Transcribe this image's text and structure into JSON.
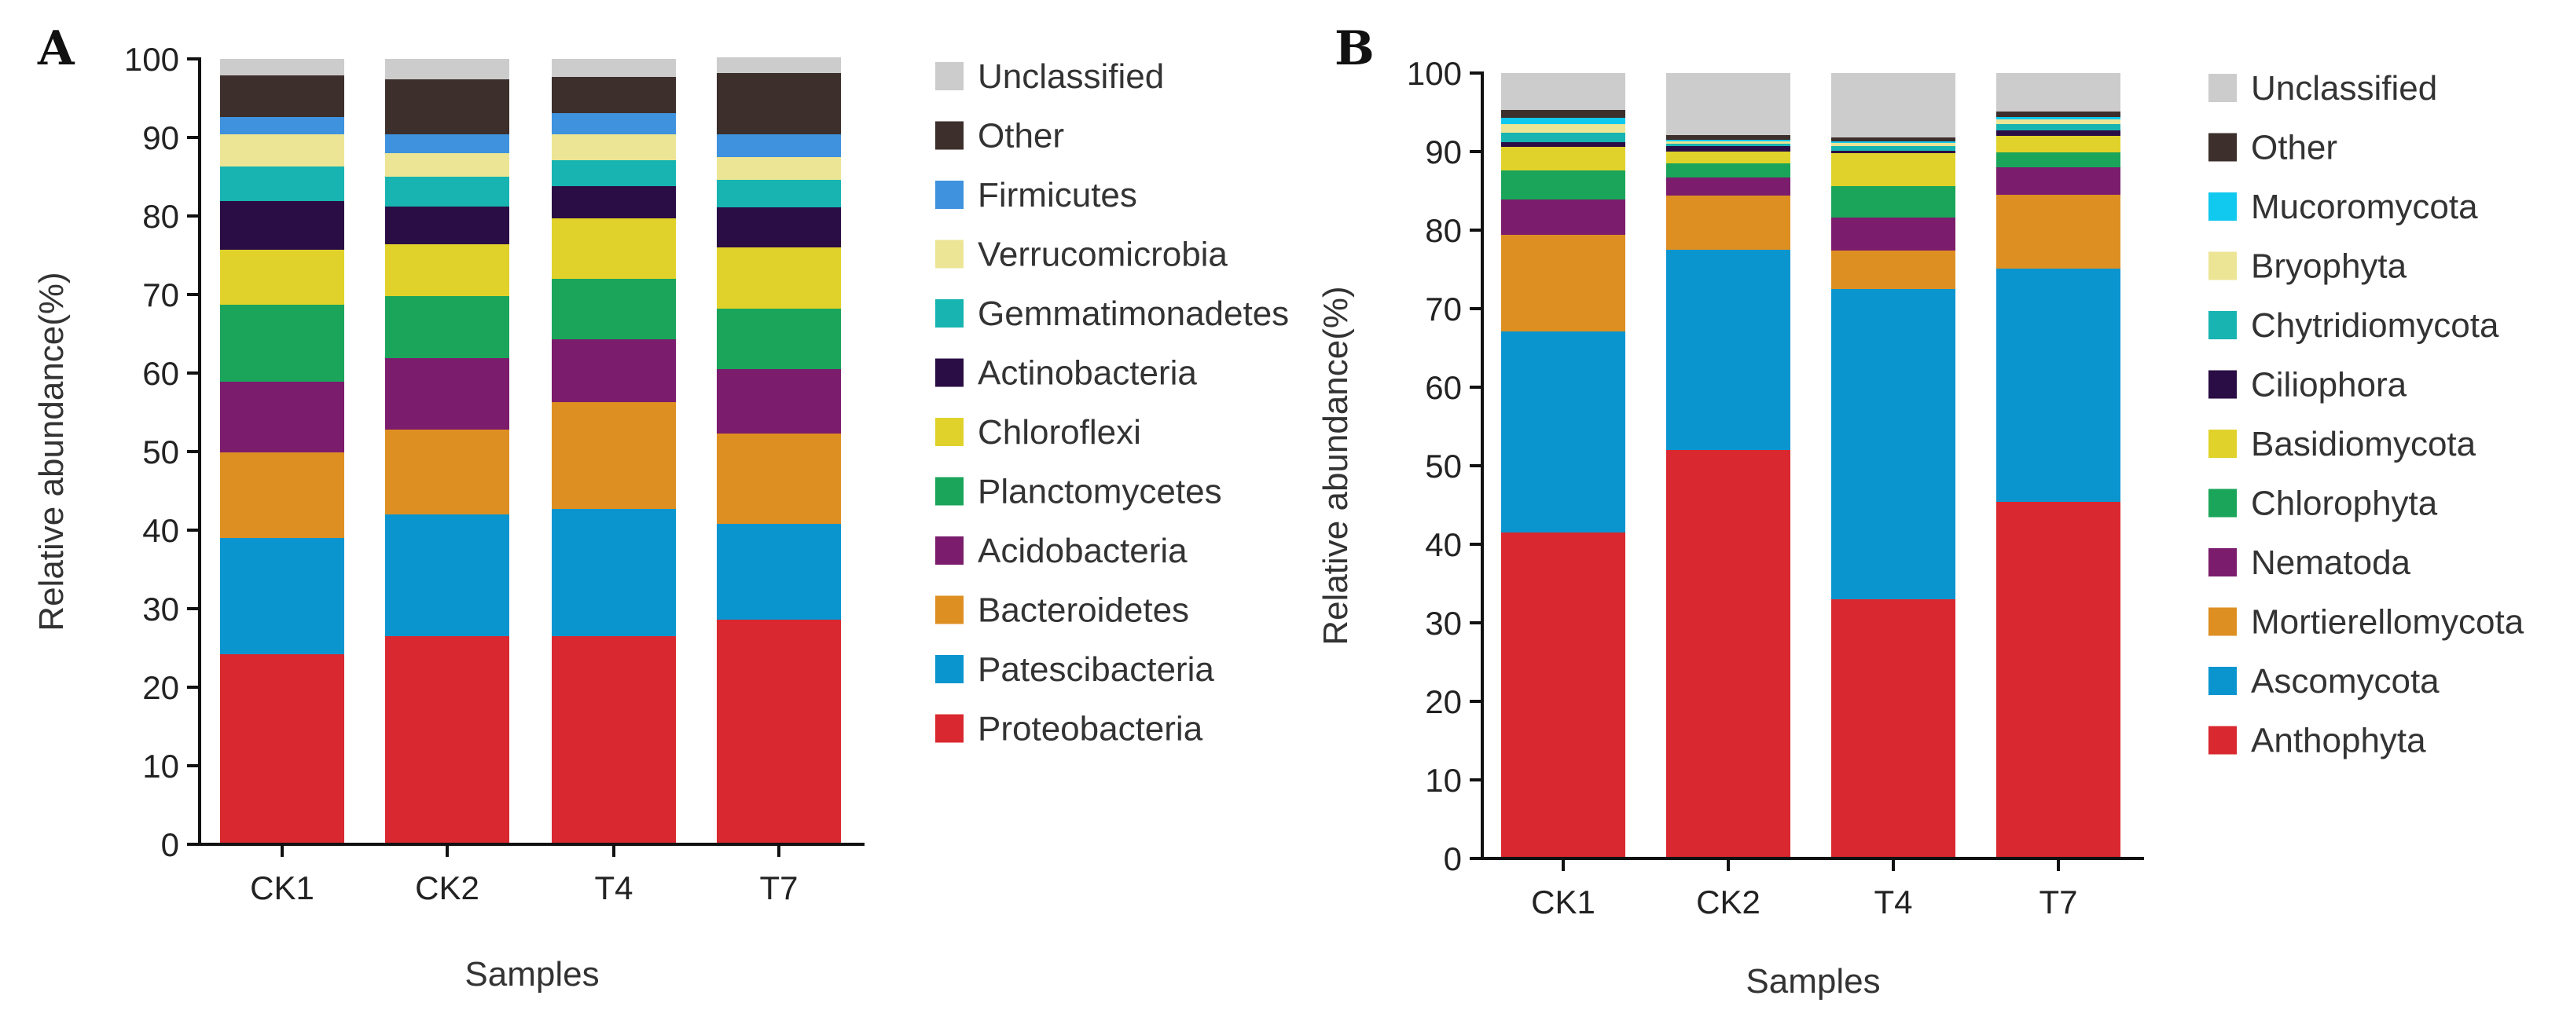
{
  "chart_data": [
    {
      "panel": "A",
      "type": "bar",
      "stacked": true,
      "xlabel": "Samples",
      "ylabel": "Relative abundance(%)",
      "ylim": [
        0,
        100
      ],
      "yticks": [
        0,
        10,
        20,
        30,
        40,
        50,
        60,
        70,
        80,
        90,
        100
      ],
      "categories": [
        "CK1",
        "CK2",
        "T4",
        "T7"
      ],
      "series": [
        {
          "name": "Proteobacteria",
          "color": "#d9282f",
          "values": [
            24.2,
            26.5,
            26.5,
            28.6
          ]
        },
        {
          "name": "Patescibacteria",
          "color": "#0a95cf",
          "values": [
            14.8,
            15.5,
            16.2,
            12.2
          ]
        },
        {
          "name": "Bacteroidetes",
          "color": "#de8f22",
          "values": [
            10.9,
            10.8,
            13.6,
            11.5
          ]
        },
        {
          "name": "Acidobacteria",
          "color": "#7b1c6c",
          "values": [
            9.0,
            9.1,
            8.0,
            8.2
          ]
        },
        {
          "name": "Planctomycetes",
          "color": "#1aa55a",
          "values": [
            9.8,
            7.9,
            7.7,
            7.7
          ]
        },
        {
          "name": "Chloroflexi",
          "color": "#e0d22a",
          "values": [
            7.0,
            6.6,
            7.7,
            7.8
          ]
        },
        {
          "name": "Actinobacteria",
          "color": "#2a0d44",
          "values": [
            6.2,
            4.8,
            4.1,
            5.1
          ]
        },
        {
          "name": "Gemmatimonadetes",
          "color": "#17b4b1",
          "values": [
            4.4,
            3.8,
            3.3,
            3.5
          ]
        },
        {
          "name": "Verrucomicrobia",
          "color": "#ece595",
          "values": [
            4.1,
            3.0,
            3.3,
            2.9
          ]
        },
        {
          "name": "Firmicutes",
          "color": "#3f92dd",
          "values": [
            2.2,
            2.4,
            2.7,
            2.9
          ]
        },
        {
          "name": "Other",
          "color": "#3c2f2c",
          "values": [
            5.3,
            7.0,
            4.6,
            7.8
          ]
        },
        {
          "name": "Unclassified",
          "color": "#cccccc",
          "values": [
            2.1,
            2.6,
            2.3,
            2.0
          ]
        }
      ]
    },
    {
      "panel": "B",
      "type": "bar",
      "stacked": true,
      "xlabel": "Samples",
      "ylabel": "Relative abundance(%)",
      "ylim": [
        0,
        100
      ],
      "yticks": [
        0,
        10,
        20,
        30,
        40,
        50,
        60,
        70,
        80,
        90,
        100
      ],
      "categories": [
        "CK1",
        "CK2",
        "T4",
        "T7"
      ],
      "series": [
        {
          "name": "Anthophyta",
          "color": "#d9282f",
          "values": [
            41.5,
            52.0,
            33.0,
            45.4
          ]
        },
        {
          "name": "Ascomycota",
          "color": "#0a95cf",
          "values": [
            25.6,
            25.5,
            39.5,
            29.7
          ]
        },
        {
          "name": "Mortierellomycota",
          "color": "#de8f22",
          "values": [
            12.3,
            6.9,
            4.9,
            9.4
          ]
        },
        {
          "name": "Nematoda",
          "color": "#7b1c6c",
          "values": [
            4.5,
            2.3,
            4.2,
            3.5
          ]
        },
        {
          "name": "Chlorophyta",
          "color": "#1aa55a",
          "values": [
            3.7,
            1.8,
            4.0,
            1.9
          ]
        },
        {
          "name": "Basidiomycota",
          "color": "#e0d22a",
          "values": [
            3.0,
            1.5,
            4.2,
            2.1
          ]
        },
        {
          "name": "Ciliophora",
          "color": "#2a0d44",
          "values": [
            0.6,
            0.7,
            0.3,
            0.7
          ]
        },
        {
          "name": "Chytridiomycota",
          "color": "#17b4b1",
          "values": [
            1.2,
            0.3,
            0.6,
            0.8
          ]
        },
        {
          "name": "Bryophyta",
          "color": "#ece595",
          "values": [
            1.1,
            0.3,
            0.4,
            0.6
          ]
        },
        {
          "name": "Mucoromycota",
          "color": "#11c8ef",
          "values": [
            0.8,
            0.2,
            0.2,
            0.3
          ]
        },
        {
          "name": "Other",
          "color": "#3c2f2c",
          "values": [
            1.0,
            0.6,
            0.5,
            0.7
          ]
        },
        {
          "name": "Unclassified",
          "color": "#cccccc",
          "values": [
            4.7,
            7.9,
            8.2,
            4.9
          ]
        }
      ]
    }
  ]
}
